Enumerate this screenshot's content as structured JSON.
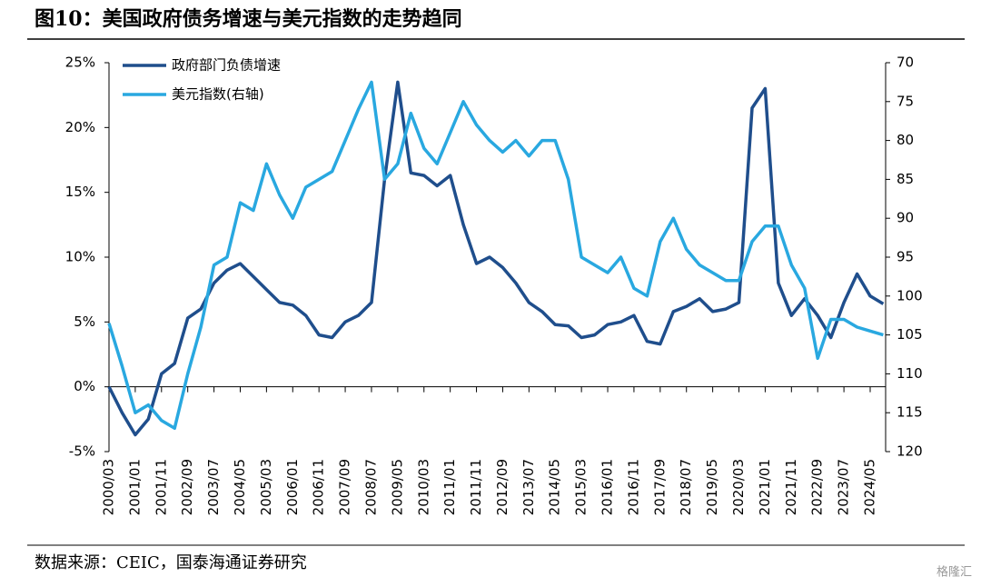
{
  "chart_data": {
    "type": "line",
    "title": "图10：美国政府债务增速与美元指数的走势趋同",
    "source": "数据来源：CEIC，国泰海通证券研究",
    "watermark": "格隆汇",
    "categories": [
      "2000/03",
      null,
      "2001/01",
      null,
      "2001/11",
      null,
      "2002/09",
      null,
      "2003/07",
      null,
      "2004/05",
      null,
      "2005/03",
      null,
      "2006/01",
      null,
      "2006/11",
      null,
      "2007/09",
      null,
      "2008/07",
      null,
      "2009/05",
      null,
      "2010/03",
      null,
      "2011/01",
      null,
      "2011/11",
      null,
      "2012/09",
      null,
      "2013/07",
      null,
      "2014/05",
      null,
      "2015/03",
      null,
      "2016/01",
      null,
      "2016/11",
      null,
      "2017/09",
      null,
      "2018/07",
      null,
      "2019/05",
      null,
      "2020/03",
      null,
      "2021/01",
      null,
      "2021/11",
      null,
      "2022/09",
      null,
      "2023/07",
      null,
      "2024/05",
      null
    ],
    "series": [
      {
        "name": "政府部门负债增速",
        "color": "#1f4e8c",
        "values": [
          0,
          -2,
          -3.7,
          -2.5,
          1,
          1.8,
          5.3,
          6,
          8,
          9,
          9.5,
          8.5,
          7.5,
          6.5,
          6.3,
          5.5,
          4,
          3.8,
          5,
          5.5,
          6.5,
          16,
          23.5,
          16.5,
          16.3,
          15.5,
          16.3,
          12.5,
          9.5,
          10,
          9.2,
          8,
          6.5,
          5.8,
          4.8,
          4.7,
          3.8,
          4,
          4.8,
          5,
          5.5,
          3.5,
          3.3,
          5.8,
          6.2,
          6.8,
          5.8,
          6,
          6.5,
          21.5,
          23,
          8,
          5.5,
          6.8,
          5.5,
          3.8,
          6.5,
          8.7,
          7,
          6.4
        ]
      },
      {
        "name": "美元指数(右轴)",
        "color": "#29a8e0",
        "axis": "y2",
        "values": [
          103.5,
          109,
          115,
          114,
          116,
          117,
          110,
          104,
          96,
          95,
          88,
          89,
          83,
          87,
          90,
          86,
          85,
          84,
          80,
          76,
          72.5,
          85,
          83,
          76.5,
          81,
          83,
          79,
          75,
          78,
          80,
          81.5,
          80,
          82,
          80,
          80,
          85,
          95,
          96,
          97,
          95,
          99,
          100,
          93,
          90,
          94,
          96,
          97,
          98,
          98,
          93,
          91,
          91,
          96,
          99,
          108,
          103,
          103,
          104,
          104.5,
          105
        ]
      }
    ],
    "ylim": [
      -5,
      25
    ],
    "yticks": [
      {
        "value": -5,
        "label": "-5%"
      },
      {
        "value": 0,
        "label": "0%"
      },
      {
        "value": 5,
        "label": "5%"
      },
      {
        "value": 10,
        "label": "10%"
      },
      {
        "value": 15,
        "label": "15%"
      },
      {
        "value": 20,
        "label": "20%"
      },
      {
        "value": 25,
        "label": "25%"
      }
    ],
    "y2lim": [
      70,
      120
    ],
    "y2ticks": [
      70,
      75,
      80,
      85,
      90,
      95,
      100,
      105,
      110,
      115,
      120
    ],
    "y2_reversed": true,
    "grid": false,
    "legend": "top-left"
  }
}
